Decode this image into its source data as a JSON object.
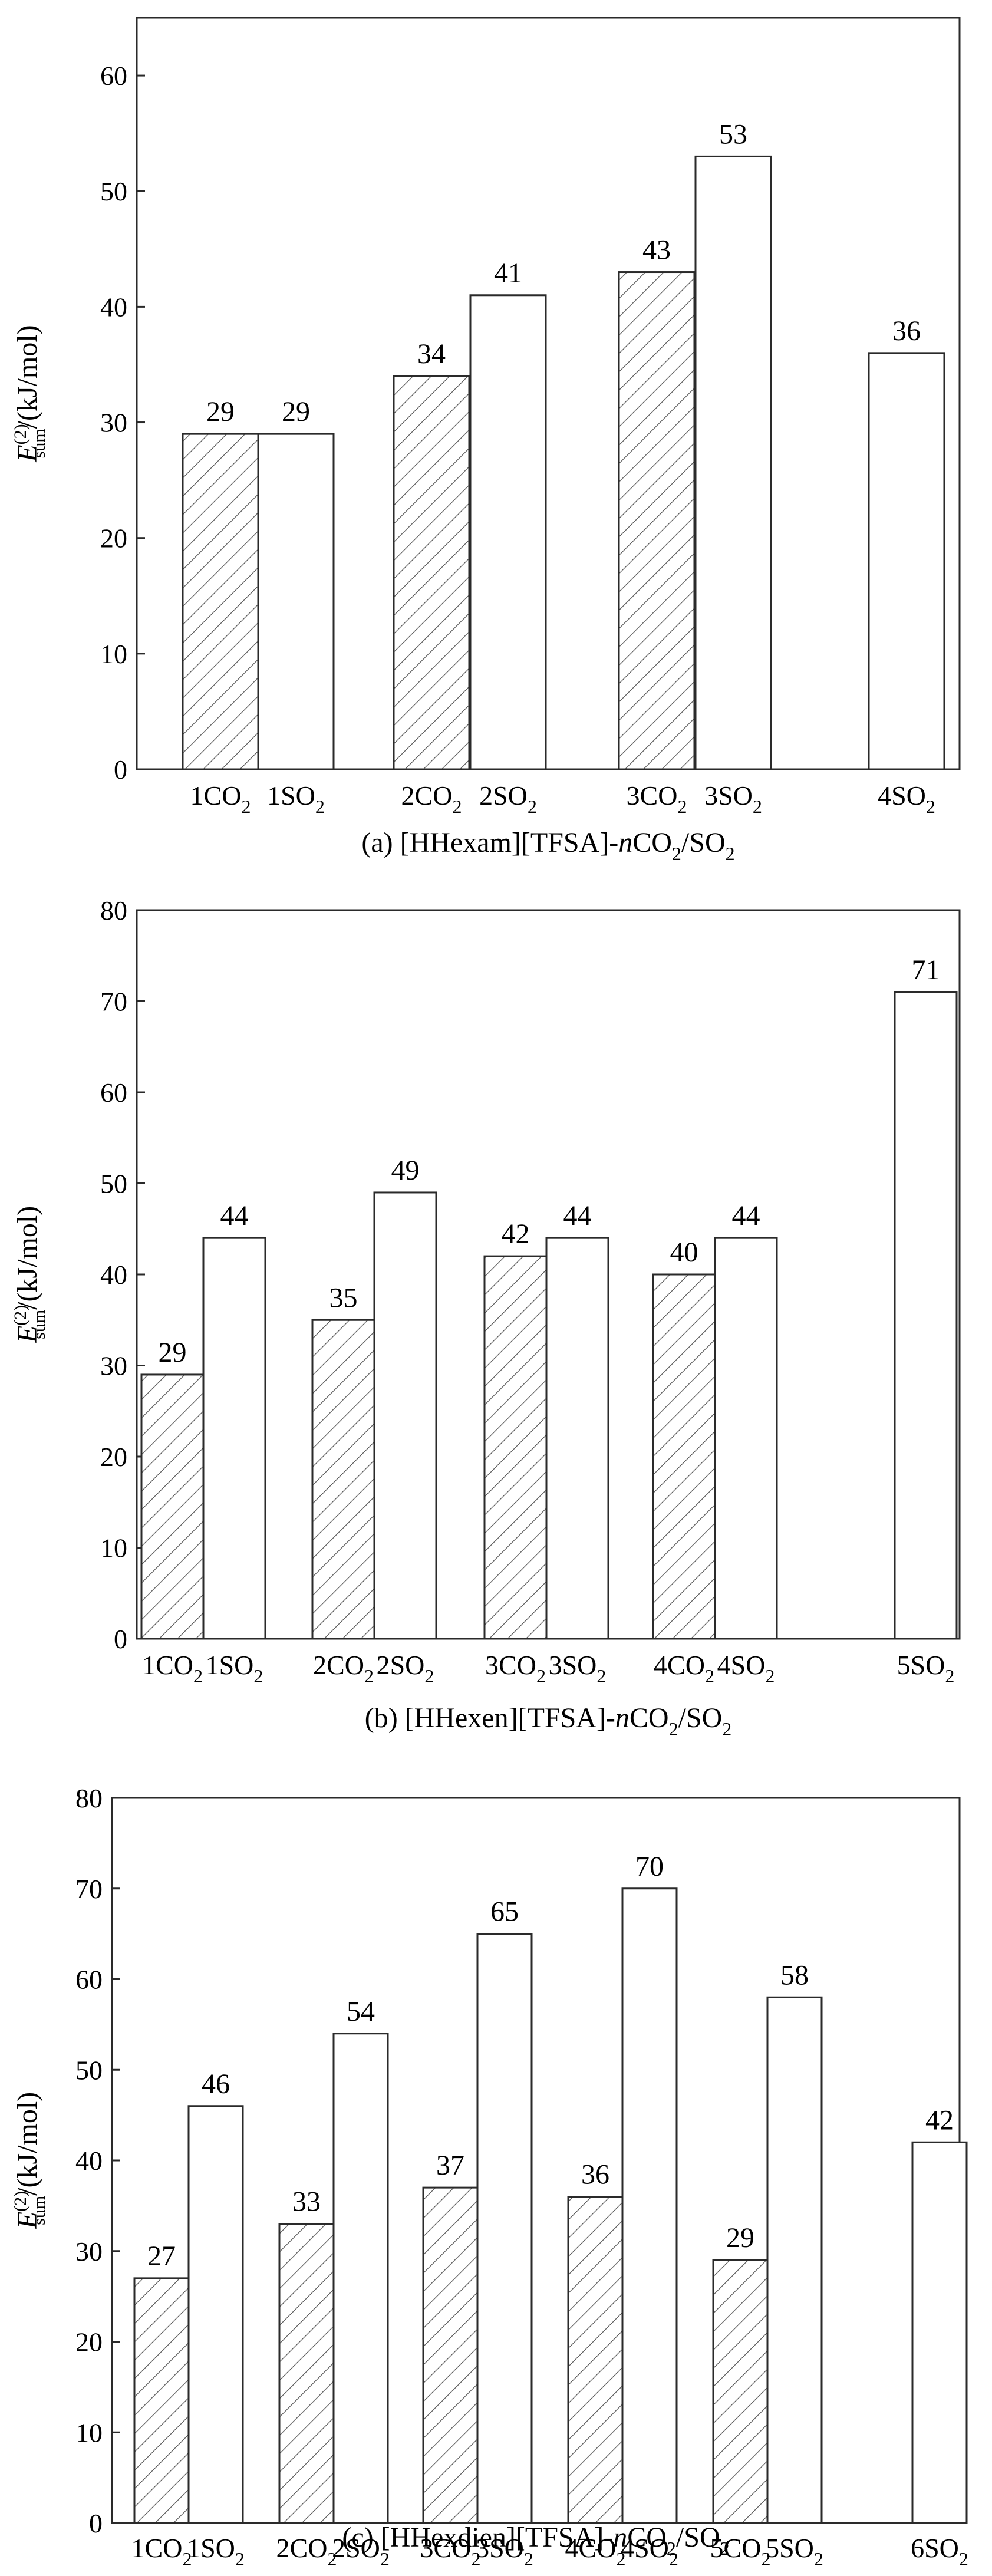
{
  "y_axis_label": {
    "symbol": "E",
    "superscript": "(2)",
    "subscript": "sum",
    "unit": "/(kJ/mol)"
  },
  "chart_data": [
    {
      "type": "bar",
      "caption": {
        "prefix": "(a) [HHexam][TFSA]-",
        "italic": "n",
        "main": "CO",
        "sub": "2",
        "suffix": "/SO",
        "sub2": "2"
      },
      "ylim": [
        0,
        65
      ],
      "yticks": [
        0,
        10,
        20,
        30,
        40,
        50,
        60
      ],
      "bars": [
        {
          "label": "1CO",
          "sub": "2",
          "value": 29,
          "series": "CO2"
        },
        {
          "label": "1SO",
          "sub": "2",
          "value": 29,
          "series": "SO2"
        },
        {
          "label": "2CO",
          "sub": "2",
          "value": 34,
          "series": "CO2"
        },
        {
          "label": "2SO",
          "sub": "2",
          "value": 41,
          "series": "SO2"
        },
        {
          "label": "3CO",
          "sub": "2",
          "value": 43,
          "series": "CO2"
        },
        {
          "label": "3SO",
          "sub": "2",
          "value": 53,
          "series": "SO2"
        },
        {
          "label": "4SO",
          "sub": "2",
          "value": 36,
          "series": "SO2"
        }
      ]
    },
    {
      "type": "bar",
      "caption": {
        "prefix": "(b) [HHexen][TFSA]-",
        "italic": "n",
        "main": "CO",
        "sub": "2",
        "suffix": "/SO",
        "sub2": "2"
      },
      "ylim": [
        0,
        80
      ],
      "yticks": [
        0,
        10,
        20,
        30,
        40,
        50,
        60,
        70,
        80
      ],
      "bars": [
        {
          "label": "1CO",
          "sub": "2",
          "value": 29,
          "series": "CO2"
        },
        {
          "label": "1SO",
          "sub": "2",
          "value": 44,
          "series": "SO2"
        },
        {
          "label": "2CO",
          "sub": "2",
          "value": 35,
          "series": "CO2"
        },
        {
          "label": "2SO",
          "sub": "2",
          "value": 49,
          "series": "SO2"
        },
        {
          "label": "3CO",
          "sub": "2",
          "value": 42,
          "series": "CO2"
        },
        {
          "label": "3SO",
          "sub": "2",
          "value": 44,
          "series": "SO2"
        },
        {
          "label": "4CO",
          "sub": "2",
          "value": 40,
          "series": "CO2"
        },
        {
          "label": "4SO",
          "sub": "2",
          "value": 44,
          "series": "SO2"
        },
        {
          "label": "5SO",
          "sub": "2",
          "value": 71,
          "series": "SO2"
        }
      ]
    },
    {
      "type": "bar",
      "caption": {
        "prefix": "(c) [HHexdien][TFSA]-",
        "italic": "n",
        "main": "CO",
        "sub": "2",
        "suffix": "/SO",
        "sub2": "2"
      },
      "ylim": [
        0,
        80
      ],
      "yticks": [
        0,
        10,
        20,
        30,
        40,
        50,
        60,
        70,
        80
      ],
      "bars": [
        {
          "label": "1CO",
          "sub": "2",
          "value": 27,
          "series": "CO2"
        },
        {
          "label": "1SO",
          "sub": "2",
          "value": 46,
          "series": "SO2"
        },
        {
          "label": "2CO",
          "sub": "2",
          "value": 33,
          "series": "CO2"
        },
        {
          "label": "2SO",
          "sub": "2",
          "value": 54,
          "series": "SO2"
        },
        {
          "label": "3CO",
          "sub": "2",
          "value": 37,
          "series": "CO2"
        },
        {
          "label": "3SO",
          "sub": "2",
          "value": 65,
          "series": "SO2"
        },
        {
          "label": "4CO",
          "sub": "2",
          "value": 36,
          "series": "CO2"
        },
        {
          "label": "4SO",
          "sub": "2",
          "value": 70,
          "series": "SO2"
        },
        {
          "label": "5CO",
          "sub": "2",
          "value": 29,
          "series": "CO2"
        },
        {
          "label": "5SO",
          "sub": "2",
          "value": 58,
          "series": "SO2"
        },
        {
          "label": "6SO",
          "sub": "2",
          "value": 42,
          "series": "SO2"
        }
      ]
    }
  ],
  "colors": {
    "frame": "#2a2a2a",
    "so2_fill": "#ffffff",
    "co2_hatch": "#555555"
  }
}
